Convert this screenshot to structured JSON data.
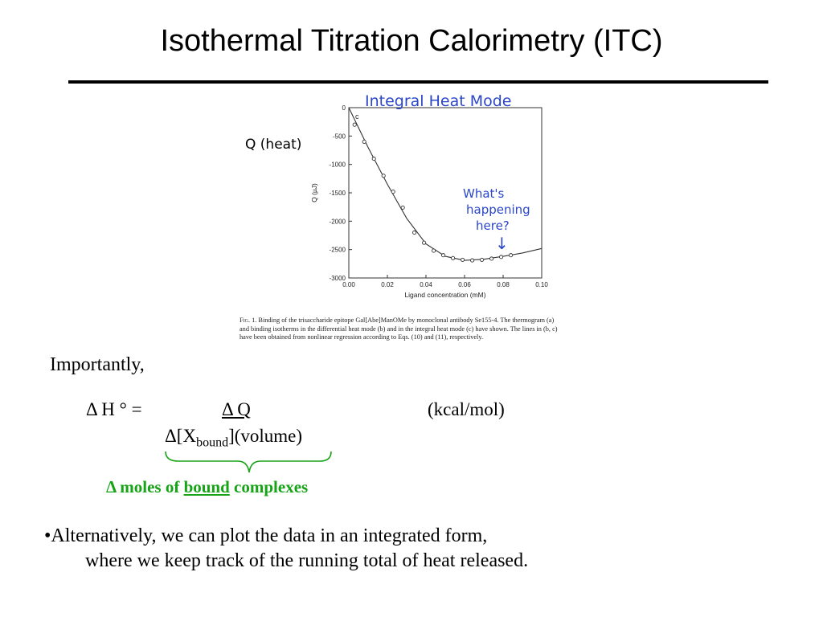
{
  "slide": {
    "title": "Isothermal Titration Calorimetry (ITC)",
    "q_heat_label": "Q (heat)",
    "importantly": "Importantly,",
    "equation": {
      "lhs": "Δ H ° =",
      "numerator": "Δ Q",
      "denominator_prefix": "Δ[X",
      "denominator_sub": "bound",
      "denominator_suffix": "](volume)",
      "units": "(kcal/mol)"
    },
    "brace_note": {
      "prefix": "Δ moles of",
      "underlined": "bound",
      "suffix": "complexes"
    },
    "bullet": {
      "line1": "•Alternatively, we can plot the data in an integrated form,",
      "line2": "where we keep track of the running total of heat released."
    }
  },
  "figure": {
    "panel_letter": "c",
    "handwritten_title": "Integral Heat Mode",
    "handwritten_note": [
      "What's",
      "happening",
      "here?"
    ],
    "arrow": "↓",
    "caption": {
      "lead": "Fig. 1.",
      "text": "Binding of the trisaccharide epitope Gal[Abe]ManOMe by monoclonal antibody Se155-4. The thermogram (a) and binding isotherms in the differential heat mode (b) and in the integral heat mode (c) have shown. The lines in (b, c) have been obtained from nonlinear regression according to Eqs. (10) and (11), respectively."
    }
  },
  "chart_data": {
    "type": "scatter",
    "xlabel": "Ligand concentration (mM)",
    "ylabel": "Q (µJ)",
    "xlim": [
      0,
      0.1
    ],
    "ylim": [
      -3000,
      0
    ],
    "x_ticks": [
      "0.00",
      "0.02",
      "0.04",
      "0.06",
      "0.08",
      "0.10"
    ],
    "y_ticks": [
      "0",
      "-500",
      "-1000",
      "-1500",
      "-2000",
      "-2500",
      "-3000"
    ],
    "series": [
      {
        "points": [
          {
            "x": 0.003,
            "y": -300
          },
          {
            "x": 0.008,
            "y": -600
          },
          {
            "x": 0.013,
            "y": -900
          },
          {
            "x": 0.018,
            "y": -1200
          },
          {
            "x": 0.023,
            "y": -1480
          },
          {
            "x": 0.028,
            "y": -1760
          },
          {
            "x": 0.034,
            "y": -2200
          },
          {
            "x": 0.039,
            "y": -2380
          },
          {
            "x": 0.044,
            "y": -2520
          },
          {
            "x": 0.049,
            "y": -2600
          },
          {
            "x": 0.054,
            "y": -2650
          },
          {
            "x": 0.059,
            "y": -2680
          },
          {
            "x": 0.064,
            "y": -2690
          },
          {
            "x": 0.069,
            "y": -2680
          },
          {
            "x": 0.074,
            "y": -2660
          },
          {
            "x": 0.079,
            "y": -2630
          },
          {
            "x": 0.084,
            "y": -2600
          }
        ],
        "fit": [
          {
            "x": 0.0,
            "y": 0
          },
          {
            "x": 0.01,
            "y": -700
          },
          {
            "x": 0.02,
            "y": -1350
          },
          {
            "x": 0.03,
            "y": -1950
          },
          {
            "x": 0.04,
            "y": -2400
          },
          {
            "x": 0.05,
            "y": -2620
          },
          {
            "x": 0.06,
            "y": -2690
          },
          {
            "x": 0.07,
            "y": -2670
          },
          {
            "x": 0.08,
            "y": -2620
          },
          {
            "x": 0.09,
            "y": -2560
          },
          {
            "x": 0.1,
            "y": -2480
          }
        ]
      }
    ]
  }
}
